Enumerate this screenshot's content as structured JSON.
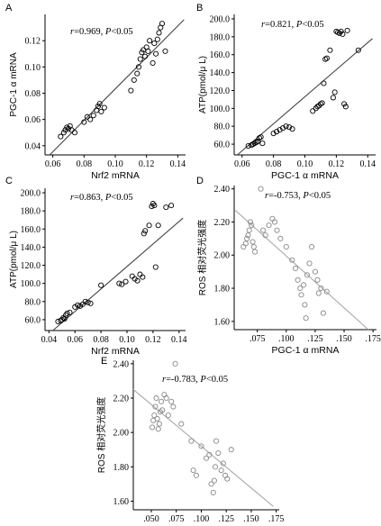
{
  "chart_data": [
    {
      "type": "scatter",
      "letter": "A",
      "xlabel": "Nrf2 mRNA",
      "ylabel": "PGC-1 α mRNA",
      "annotation": {
        "r": "=0.969, ",
        "p": "P",
        "rest": "<0.05"
      },
      "xlim": [
        0.055,
        0.145
      ],
      "ylim": [
        0.033,
        0.14
      ],
      "xticks": [
        "0.06",
        "0.08",
        "0.10",
        "0.12",
        "0.14"
      ],
      "xtick_values": [
        0.06,
        0.08,
        0.1,
        0.12,
        0.14
      ],
      "yticks": [
        "0.04",
        "0.06",
        "0.08",
        "0.10",
        "0.12"
      ],
      "ytick_values": [
        0.04,
        0.06,
        0.08,
        0.1,
        0.12
      ],
      "marker_color": "#000000",
      "line_color": "#444444",
      "fit_line": [
        [
          0.058,
          0.033
        ],
        [
          0.144,
          0.136
        ]
      ],
      "points": [
        [
          0.065,
          0.047
        ],
        [
          0.067,
          0.05
        ],
        [
          0.068,
          0.052
        ],
        [
          0.069,
          0.054
        ],
        [
          0.07,
          0.053
        ],
        [
          0.071,
          0.055
        ],
        [
          0.072,
          0.052
        ],
        [
          0.074,
          0.05
        ],
        [
          0.08,
          0.058
        ],
        [
          0.082,
          0.062
        ],
        [
          0.084,
          0.06
        ],
        [
          0.086,
          0.063
        ],
        [
          0.088,
          0.067
        ],
        [
          0.089,
          0.07
        ],
        [
          0.09,
          0.072
        ],
        [
          0.091,
          0.066
        ],
        [
          0.093,
          0.069
        ],
        [
          0.11,
          0.082
        ],
        [
          0.112,
          0.09
        ],
        [
          0.114,
          0.095
        ],
        [
          0.115,
          0.1
        ],
        [
          0.116,
          0.106
        ],
        [
          0.117,
          0.111
        ],
        [
          0.118,
          0.113
        ],
        [
          0.119,
          0.108
        ],
        [
          0.12,
          0.115
        ],
        [
          0.121,
          0.112
        ],
        [
          0.122,
          0.12
        ],
        [
          0.124,
          0.103
        ],
        [
          0.125,
          0.118
        ],
        [
          0.126,
          0.11
        ],
        [
          0.127,
          0.121
        ],
        [
          0.128,
          0.126
        ],
        [
          0.129,
          0.13
        ],
        [
          0.13,
          0.133
        ],
        [
          0.132,
          0.112
        ]
      ]
    },
    {
      "type": "scatter",
      "letter": "B",
      "xlabel": "PGC-1 α  mRNA",
      "ylabel": "ATP(pmol/μ L)",
      "annotation": {
        "r": "=0.821, ",
        "p": "P",
        "rest": "<0.05"
      },
      "xlim": [
        0.055,
        0.145
      ],
      "ylim": [
        48,
        205
      ],
      "xticks": [
        "0.06",
        "0.08",
        "0.10",
        "0.12",
        "0.14"
      ],
      "xtick_values": [
        0.06,
        0.08,
        0.1,
        0.12,
        0.14
      ],
      "yticks": [
        "60.0",
        "80.0",
        "100.0",
        "120.0",
        "140.0",
        "160.0",
        "180.0",
        "200.0"
      ],
      "ytick_values": [
        60,
        80,
        100,
        120,
        140,
        160,
        180,
        200
      ],
      "marker_color": "#000000",
      "line_color": "#444444",
      "fit_line": [
        [
          0.057,
          48
        ],
        [
          0.143,
          178
        ]
      ],
      "points": [
        [
          0.064,
          58
        ],
        [
          0.066,
          59
        ],
        [
          0.067,
          60
        ],
        [
          0.068,
          61
        ],
        [
          0.069,
          62
        ],
        [
          0.07,
          63
        ],
        [
          0.071,
          67
        ],
        [
          0.072,
          68
        ],
        [
          0.073,
          61
        ],
        [
          0.08,
          72
        ],
        [
          0.082,
          74
        ],
        [
          0.084,
          76
        ],
        [
          0.086,
          78
        ],
        [
          0.088,
          80
        ],
        [
          0.09,
          79
        ],
        [
          0.092,
          77
        ],
        [
          0.105,
          97
        ],
        [
          0.107,
          100
        ],
        [
          0.108,
          102
        ],
        [
          0.109,
          103
        ],
        [
          0.11,
          105
        ],
        [
          0.111,
          106
        ],
        [
          0.112,
          128
        ],
        [
          0.113,
          155
        ],
        [
          0.114,
          156
        ],
        [
          0.116,
          165
        ],
        [
          0.118,
          112
        ],
        [
          0.119,
          118
        ],
        [
          0.12,
          186
        ],
        [
          0.121,
          185
        ],
        [
          0.122,
          184
        ],
        [
          0.123,
          186
        ],
        [
          0.124,
          183
        ],
        [
          0.125,
          105
        ],
        [
          0.126,
          102
        ],
        [
          0.127,
          187
        ],
        [
          0.134,
          165
        ]
      ]
    },
    {
      "type": "scatter",
      "letter": "C",
      "xlabel": "Nrf2 mRNA",
      "ylabel": "ATP(pmol/μ L)",
      "annotation": {
        "r": "=0.863, ",
        "p": "P",
        "rest": "<0.05"
      },
      "xlim": [
        0.037,
        0.145
      ],
      "ylim": [
        48,
        205
      ],
      "xticks": [
        "0.04",
        "0.06",
        "0.08",
        "0.10",
        "0.12",
        "0.14"
      ],
      "xtick_values": [
        0.04,
        0.06,
        0.08,
        0.1,
        0.12,
        0.14
      ],
      "yticks": [
        "60.0",
        "80.0",
        "100.0",
        "120.0",
        "140.0",
        "160.0",
        "180.0",
        "200.0"
      ],
      "ytick_values": [
        60,
        80,
        100,
        120,
        140,
        160,
        180,
        200
      ],
      "marker_color": "#000000",
      "line_color": "#444444",
      "fit_line": [
        [
          0.043,
          48
        ],
        [
          0.143,
          172
        ]
      ],
      "points": [
        [
          0.047,
          58
        ],
        [
          0.049,
          59
        ],
        [
          0.05,
          60
        ],
        [
          0.051,
          62
        ],
        [
          0.052,
          61
        ],
        [
          0.053,
          65
        ],
        [
          0.054,
          67
        ],
        [
          0.056,
          68
        ],
        [
          0.06,
          74
        ],
        [
          0.062,
          76
        ],
        [
          0.064,
          75
        ],
        [
          0.066,
          77
        ],
        [
          0.068,
          80
        ],
        [
          0.07,
          79
        ],
        [
          0.072,
          78
        ],
        [
          0.08,
          98
        ],
        [
          0.094,
          100
        ],
        [
          0.096,
          99
        ],
        [
          0.099,
          102
        ],
        [
          0.104,
          108
        ],
        [
          0.106,
          105
        ],
        [
          0.108,
          103
        ],
        [
          0.11,
          110
        ],
        [
          0.112,
          107
        ],
        [
          0.113,
          155
        ],
        [
          0.114,
          158
        ],
        [
          0.117,
          164
        ],
        [
          0.119,
          185
        ],
        [
          0.12,
          188
        ],
        [
          0.121,
          186
        ],
        [
          0.122,
          118
        ],
        [
          0.124,
          164
        ],
        [
          0.13,
          184
        ],
        [
          0.134,
          186
        ]
      ]
    },
    {
      "type": "scatter",
      "letter": "D",
      "xlabel": "PGC-1 α  mRNA",
      "ylabel": "ROS 相对荧光强度",
      "annotation": {
        "r": "=-0.753, ",
        "p": "P",
        "rest": "<0.05"
      },
      "xlim": [
        0.055,
        0.178
      ],
      "ylim": [
        1.55,
        2.42
      ],
      "xticks": [
        ".075",
        ".100",
        ".125",
        ".150",
        ".175"
      ],
      "xtick_values": [
        0.075,
        0.1,
        0.125,
        0.15,
        0.175
      ],
      "yticks": [
        "1.60",
        "1.80",
        "2.00",
        "2.20",
        "2.40"
      ],
      "ytick_values": [
        1.6,
        1.8,
        2.0,
        2.2,
        2.4
      ],
      "marker_color": "#888888",
      "line_color": "#aaaaaa",
      "fit_line": [
        [
          0.056,
          2.27
        ],
        [
          0.171,
          1.55
        ]
      ],
      "points": [
        [
          0.063,
          2.05
        ],
        [
          0.065,
          2.07
        ],
        [
          0.066,
          2.1
        ],
        [
          0.067,
          2.12
        ],
        [
          0.068,
          2.15
        ],
        [
          0.069,
          2.2
        ],
        [
          0.07,
          2.18
        ],
        [
          0.071,
          2.08
        ],
        [
          0.072,
          2.05
        ],
        [
          0.073,
          2.02
        ],
        [
          0.078,
          2.4
        ],
        [
          0.08,
          2.15
        ],
        [
          0.082,
          2.12
        ],
        [
          0.085,
          2.18
        ],
        [
          0.088,
          2.22
        ],
        [
          0.09,
          2.2
        ],
        [
          0.092,
          2.15
        ],
        [
          0.095,
          2.1
        ],
        [
          0.1,
          2.05
        ],
        [
          0.105,
          1.97
        ],
        [
          0.108,
          1.92
        ],
        [
          0.11,
          1.85
        ],
        [
          0.112,
          1.8
        ],
        [
          0.113,
          1.76
        ],
        [
          0.115,
          1.82
        ],
        [
          0.116,
          1.7
        ],
        [
          0.117,
          1.62
        ],
        [
          0.118,
          1.88
        ],
        [
          0.12,
          1.95
        ],
        [
          0.122,
          2.05
        ],
        [
          0.125,
          1.9
        ],
        [
          0.127,
          1.85
        ],
        [
          0.128,
          1.77
        ],
        [
          0.13,
          1.8
        ],
        [
          0.132,
          1.65
        ],
        [
          0.135,
          1.78
        ]
      ]
    },
    {
      "type": "scatter",
      "letter": "E",
      "xlabel": "Nrf2 mRNA",
      "ylabel": "ROS 相对荧光强度",
      "annotation": {
        "r": "=-0.783, ",
        "p": "P",
        "rest": "<0.05"
      },
      "xlim": [
        0.032,
        0.178
      ],
      "ylim": [
        1.55,
        2.42
      ],
      "xticks": [
        ".050",
        ".075",
        ".100",
        ".125",
        ".150",
        ".175"
      ],
      "xtick_values": [
        0.05,
        0.075,
        0.1,
        0.125,
        0.15,
        0.175
      ],
      "yticks": [
        "1.60",
        "1.80",
        "2.00",
        "2.20",
        "2.40"
      ],
      "ytick_values": [
        1.6,
        1.8,
        2.0,
        2.2,
        2.4
      ],
      "marker_color": "#888888",
      "line_color": "#aaaaaa",
      "fit_line": [
        [
          0.032,
          2.25
        ],
        [
          0.172,
          1.57
        ]
      ],
      "points": [
        [
          0.051,
          2.03
        ],
        [
          0.052,
          2.07
        ],
        [
          0.053,
          2.1
        ],
        [
          0.054,
          2.15
        ],
        [
          0.055,
          2.2
        ],
        [
          0.056,
          2.08
        ],
        [
          0.057,
          2.02
        ],
        [
          0.058,
          2.05
        ],
        [
          0.059,
          2.12
        ],
        [
          0.06,
          2.18
        ],
        [
          0.061,
          2.13
        ],
        [
          0.063,
          2.22
        ],
        [
          0.065,
          2.2
        ],
        [
          0.067,
          2.1
        ],
        [
          0.07,
          2.18
        ],
        [
          0.072,
          2.15
        ],
        [
          0.074,
          2.4
        ],
        [
          0.08,
          2.05
        ],
        [
          0.09,
          1.95
        ],
        [
          0.092,
          1.78
        ],
        [
          0.095,
          1.75
        ],
        [
          0.1,
          1.92
        ],
        [
          0.105,
          1.85
        ],
        [
          0.108,
          1.87
        ],
        [
          0.11,
          1.7
        ],
        [
          0.112,
          1.65
        ],
        [
          0.113,
          1.72
        ],
        [
          0.114,
          1.8
        ],
        [
          0.115,
          1.95
        ],
        [
          0.117,
          1.88
        ],
        [
          0.12,
          1.78
        ],
        [
          0.122,
          1.82
        ],
        [
          0.124,
          1.75
        ],
        [
          0.126,
          1.73
        ],
        [
          0.13,
          1.9
        ]
      ]
    }
  ]
}
